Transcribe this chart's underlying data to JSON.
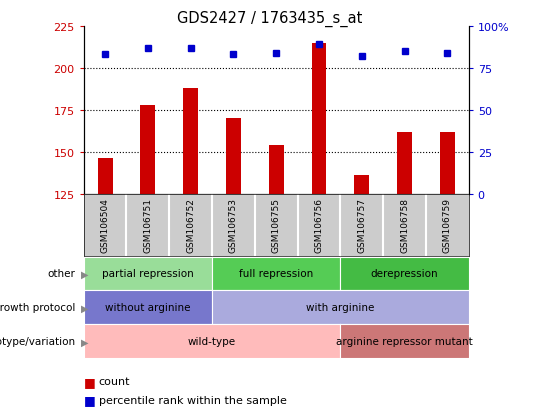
{
  "title": "GDS2427 / 1763435_s_at",
  "samples": [
    "GSM106504",
    "GSM106751",
    "GSM106752",
    "GSM106753",
    "GSM106755",
    "GSM106756",
    "GSM106757",
    "GSM106758",
    "GSM106759"
  ],
  "counts": [
    146,
    178,
    188,
    170,
    154,
    215,
    136,
    162,
    162
  ],
  "percentile_ranks": [
    83,
    87,
    87,
    83,
    84,
    89,
    82,
    85,
    84
  ],
  "ylim_left": [
    125,
    225
  ],
  "ylim_right": [
    0,
    100
  ],
  "yticks_left": [
    125,
    150,
    175,
    200,
    225
  ],
  "yticks_right": [
    0,
    25,
    50,
    75,
    100
  ],
  "bar_color": "#cc0000",
  "dot_color": "#0000cc",
  "bar_width": 0.35,
  "annotation_rows": [
    {
      "label": "other",
      "segments": [
        {
          "text": "partial repression",
          "start": 0,
          "end": 3,
          "color": "#99dd99"
        },
        {
          "text": "full repression",
          "start": 3,
          "end": 6,
          "color": "#55cc55"
        },
        {
          "text": "derepression",
          "start": 6,
          "end": 9,
          "color": "#44bb44"
        }
      ]
    },
    {
      "label": "growth protocol",
      "segments": [
        {
          "text": "without arginine",
          "start": 0,
          "end": 3,
          "color": "#7777cc"
        },
        {
          "text": "with arginine",
          "start": 3,
          "end": 9,
          "color": "#aaaadd"
        }
      ]
    },
    {
      "label": "genotype/variation",
      "segments": [
        {
          "text": "wild-type",
          "start": 0,
          "end": 6,
          "color": "#ffbbbb"
        },
        {
          "text": "arginine repressor mutant",
          "start": 6,
          "end": 9,
          "color": "#cc7777"
        }
      ]
    }
  ],
  "legend_items": [
    {
      "color": "#cc0000",
      "label": "count"
    },
    {
      "color": "#0000cc",
      "label": "percentile rank within the sample"
    }
  ],
  "gridline_values": [
    150,
    175,
    200
  ],
  "chart_bg": "#ffffff"
}
